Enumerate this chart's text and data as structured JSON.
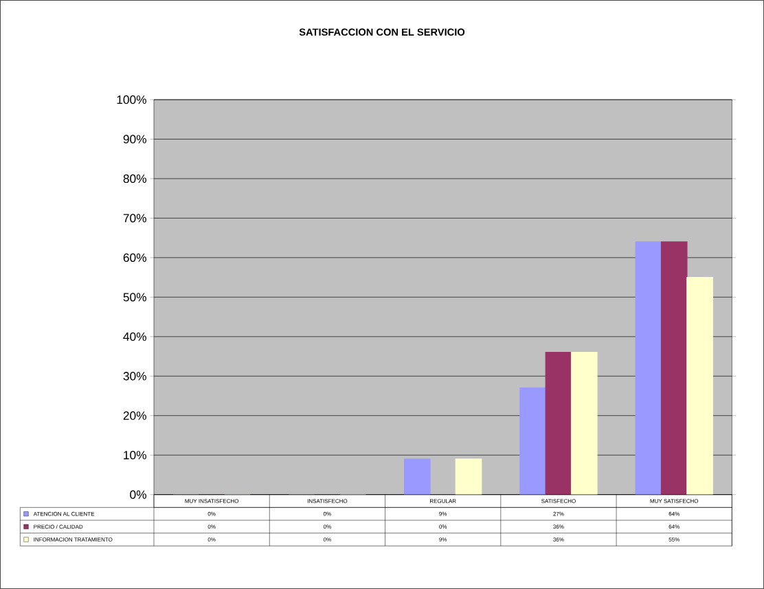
{
  "chart_data": {
    "type": "bar",
    "title": "SATISFACCION CON EL SERVICIO",
    "categories": [
      "MUY INSATISFECHO",
      "INSATISFECHO",
      "REGULAR",
      "SATISFECHO",
      "MUY SATISFECHO"
    ],
    "series": [
      {
        "name": "ATENCION AL CLIENTE",
        "color": "#9999ff",
        "values": [
          0,
          0,
          9,
          27,
          64
        ],
        "value_labels": [
          "0%",
          "0%",
          "9%",
          "27%",
          "64%"
        ]
      },
      {
        "name": "PRECIO / CALIDAD",
        "color": "#993366",
        "values": [
          0,
          0,
          0,
          36,
          64
        ],
        "value_labels": [
          "0%",
          "0%",
          "0%",
          "36%",
          "64%"
        ]
      },
      {
        "name": "INFORMACION TRATAMIENTO",
        "color": "#ffffcc",
        "values": [
          0,
          0,
          9,
          36,
          55
        ],
        "value_labels": [
          "0%",
          "0%",
          "9%",
          "36%",
          "55%"
        ]
      }
    ],
    "ylim": [
      0,
      100
    ],
    "yticks": [
      {
        "value": 0,
        "label": "0%"
      },
      {
        "value": 10,
        "label": "10%"
      },
      {
        "value": 20,
        "label": "20%"
      },
      {
        "value": 30,
        "label": "30%"
      },
      {
        "value": 40,
        "label": "40%"
      },
      {
        "value": 50,
        "label": "50%"
      },
      {
        "value": 60,
        "label": "60%"
      },
      {
        "value": 70,
        "label": "70%"
      },
      {
        "value": 80,
        "label": "80%"
      },
      {
        "value": 90,
        "label": "90%"
      },
      {
        "value": 100,
        "label": "100%"
      }
    ],
    "grid": "y",
    "legend": "bottom"
  }
}
